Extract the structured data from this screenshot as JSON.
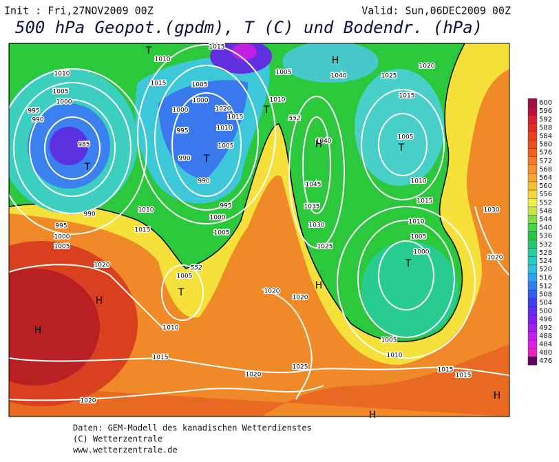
{
  "header": {
    "init": "Init : Fri,27NOV2009 00Z",
    "valid": "Valid: Sun,06DEC2009 00Z",
    "title": "500 hPa Geopot.(gpdm), T (C) und Bodendr. (hPa)"
  },
  "map": {
    "isobar_labels": [
      1015,
      1010,
      1010,
      1015,
      1005,
      1000,
      995,
      990,
      985,
      990,
      995,
      1000,
      1005,
      1010,
      1015,
      1020,
      1005,
      1010,
      1015,
      1020,
      1020,
      1025,
      1020,
      1020,
      1010,
      1005,
      1015,
      1015,
      1020,
      1030,
      1015,
      1010,
      1005,
      1015,
      1025,
      1020,
      1040,
      1005,
      1010,
      1030,
      1025,
      1035,
      1040,
      1045,
      1010,
      1005,
      1000,
      990,
      995,
      1000,
      1005,
      990,
      995,
      1000,
      1005,
      1020,
      1015,
      1010,
      1005,
      1000
    ],
    "contour_labels": [
      552,
      552
    ],
    "pressure_centers": [
      "T",
      "H",
      "T",
      "T",
      "T",
      "H",
      "H",
      "T",
      "H",
      "H",
      "T",
      "T",
      "H",
      "H"
    ]
  },
  "legend": {
    "levels": [
      600,
      596,
      592,
      588,
      584,
      580,
      576,
      572,
      568,
      564,
      560,
      556,
      552,
      548,
      544,
      540,
      536,
      532,
      528,
      524,
      520,
      516,
      512,
      508,
      504,
      500,
      496,
      492,
      488,
      484,
      480,
      476
    ],
    "colors": [
      "#a01040",
      "#c01040",
      "#d82030",
      "#e03020",
      "#e84020",
      "#e85020",
      "#f06020",
      "#f07828",
      "#f49030",
      "#f8a830",
      "#f8c030",
      "#f8d838",
      "#f0f040",
      "#c0e840",
      "#80e040",
      "#40d840",
      "#20c840",
      "#20c870",
      "#20d0a0",
      "#20d0c8",
      "#30c0e0",
      "#30a0f0",
      "#3080f0",
      "#3060f0",
      "#4040f0",
      "#6030f0",
      "#8020f0",
      "#a020f0",
      "#c020f0",
      "#e020e0",
      "#f020c0",
      "#600060"
    ]
  },
  "footer": [
    "Daten: GEM-Modell des kanadischen Wetterdienstes",
    "(C) Wetterzentrale",
    "www.wetterzentrale.de"
  ]
}
